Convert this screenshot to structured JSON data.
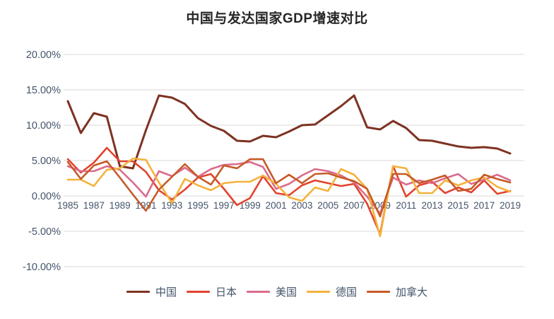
{
  "title": "中国与发达国家GDP增速对比",
  "colors": {
    "background": "#FFFFFF",
    "title_text": "#262626",
    "axis_text": "#44546A",
    "gridline": "#D9D9D9"
  },
  "legend": {
    "position": "bottom",
    "items": [
      "中国",
      "日本",
      "美国",
      "德国",
      "加拿大"
    ]
  },
  "chart_data": {
    "type": "line",
    "title": "中国与发达国家GDP增速对比",
    "xlabel": "",
    "ylabel": "",
    "x": [
      1985,
      1986,
      1987,
      1988,
      1989,
      1990,
      1991,
      1992,
      1993,
      1994,
      1995,
      1996,
      1997,
      1998,
      1999,
      2000,
      2001,
      2002,
      2003,
      2004,
      2005,
      2006,
      2007,
      2008,
      2009,
      2010,
      2011,
      2012,
      2013,
      2014,
      2015,
      2016,
      2017,
      2018,
      2019
    ],
    "x_tick_labels": [
      "1985",
      "1987",
      "1989",
      "1991",
      "1993",
      "1995",
      "1997",
      "1999",
      "2001",
      "2003",
      "2005",
      "2007",
      "2009",
      "2011",
      "2013",
      "2015",
      "2017",
      "2019"
    ],
    "ylim": [
      -10,
      20
    ],
    "y_ticks": [
      20,
      15,
      10,
      5,
      0,
      -5,
      -10
    ],
    "y_tick_labels": [
      "20.00%",
      "15.00%",
      "10.00%",
      "5.00%",
      "0.00%",
      "-5.00%",
      "-10.00%"
    ],
    "grid": true,
    "legend_position": "bottom",
    "unit": "percent",
    "series": [
      {
        "name": "中国",
        "color": "#7D3222",
        "values": [
          13.4,
          8.9,
          11.7,
          11.2,
          4.2,
          3.9,
          9.3,
          14.2,
          13.9,
          13.0,
          11.0,
          9.9,
          9.2,
          7.8,
          7.7,
          8.5,
          8.3,
          9.1,
          10.0,
          10.1,
          11.4,
          12.7,
          14.2,
          9.7,
          9.4,
          10.6,
          9.6,
          7.9,
          7.8,
          7.4,
          7.0,
          6.8,
          6.9,
          6.7,
          6.0
        ]
      },
      {
        "name": "日本",
        "color": "#E2432E",
        "values": [
          5.2,
          3.3,
          4.7,
          6.8,
          4.9,
          4.9,
          3.4,
          0.8,
          -0.5,
          0.9,
          2.6,
          3.1,
          1.0,
          -1.3,
          -0.3,
          2.8,
          0.4,
          0.1,
          1.5,
          2.2,
          1.8,
          1.4,
          1.7,
          -1.1,
          -5.4,
          4.2,
          -0.1,
          1.5,
          2.0,
          0.4,
          1.2,
          0.5,
          2.2,
          0.3,
          0.7
        ]
      },
      {
        "name": "美国",
        "color": "#DB6B8C",
        "values": [
          4.2,
          3.5,
          3.5,
          4.2,
          3.7,
          1.9,
          -0.1,
          3.5,
          2.8,
          4.0,
          2.7,
          3.8,
          4.4,
          4.5,
          4.8,
          4.1,
          1.0,
          1.7,
          2.9,
          3.8,
          3.5,
          2.9,
          1.9,
          -0.1,
          -2.5,
          2.6,
          1.6,
          2.2,
          1.8,
          2.5,
          3.1,
          1.7,
          2.3,
          3.0,
          2.2
        ]
      },
      {
        "name": "德国",
        "color": "#F4B23C",
        "values": [
          2.3,
          2.3,
          1.4,
          3.7,
          3.9,
          5.3,
          5.1,
          1.9,
          -1.0,
          2.4,
          1.5,
          0.8,
          1.8,
          2.0,
          2.0,
          2.9,
          1.7,
          -0.2,
          -0.7,
          1.2,
          0.7,
          3.8,
          3.0,
          1.0,
          -5.7,
          4.2,
          3.9,
          0.4,
          0.4,
          2.2,
          1.5,
          2.2,
          2.6,
          1.3,
          0.6
        ]
      },
      {
        "name": "加拿大",
        "color": "#C65A27",
        "values": [
          4.8,
          2.4,
          4.3,
          4.9,
          2.6,
          0.2,
          -2.1,
          0.9,
          2.7,
          4.5,
          2.7,
          1.6,
          4.3,
          3.9,
          5.2,
          5.2,
          1.8,
          3.0,
          1.8,
          3.1,
          3.2,
          2.6,
          2.1,
          1.0,
          -2.9,
          3.1,
          3.1,
          1.8,
          2.3,
          2.9,
          0.7,
          1.0,
          3.0,
          2.4,
          1.9
        ]
      }
    ]
  }
}
